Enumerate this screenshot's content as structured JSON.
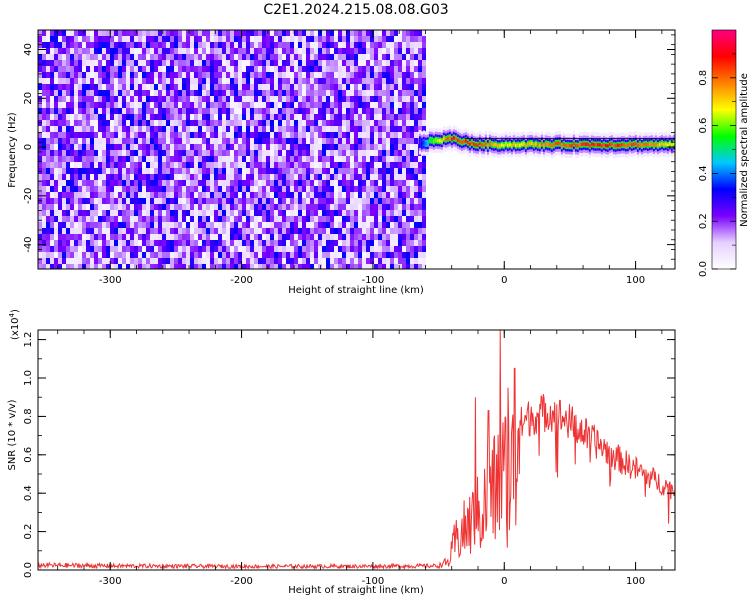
{
  "title": "C2E1.2024.215.08.08.G03",
  "chart_data": [
    {
      "type": "heatmap",
      "xlabel": "Height of straight line (km)",
      "ylabel": "Frequency (Hz)",
      "xlim": [
        -355,
        130
      ],
      "ylim": [
        -50,
        48
      ],
      "xticks": [
        -300,
        -200,
        -100,
        0,
        100
      ],
      "yticks": [
        -40,
        -20,
        0,
        20,
        40
      ],
      "noise_region": {
        "x": [
          -355,
          -62
        ],
        "y": [
          -50,
          48
        ],
        "amplitude_range": [
          0.05,
          0.35
        ]
      },
      "signal_band": {
        "x": [
          -65,
          130
        ],
        "center_frequency": [
          {
            "x": -65,
            "f": 1.5
          },
          {
            "x": -55,
            "f": 2.5
          },
          {
            "x": -40,
            "f": 3.5
          },
          {
            "x": -30,
            "f": 2.0
          },
          {
            "x": -20,
            "f": 1.0
          },
          {
            "x": -10,
            "f": 1.0
          },
          {
            "x": 0,
            "f": 1.0
          },
          {
            "x": 50,
            "f": 1.0
          },
          {
            "x": 100,
            "f": 1.0
          },
          {
            "x": 130,
            "f": 1.0
          }
        ],
        "peak_amplitude": [
          {
            "x": -65,
            "a": 0.3
          },
          {
            "x": -55,
            "a": 0.6
          },
          {
            "x": -40,
            "a": 0.9
          },
          {
            "x": -20,
            "a": 0.9
          },
          {
            "x": 0,
            "a": 0.7
          },
          {
            "x": 40,
            "a": 0.85
          },
          {
            "x": 75,
            "a": 0.9
          },
          {
            "x": 100,
            "a": 0.85
          },
          {
            "x": 130,
            "a": 0.7
          }
        ]
      },
      "colorbar": {
        "label": "Normalized spectral amplitude",
        "ticks": [
          "0.0",
          "0.2",
          "0.4",
          "0.6",
          "0.8"
        ],
        "range": [
          0,
          1
        ],
        "colors": [
          "#ffffff",
          "#e6d0ff",
          "#7a00ff",
          "#0000ff",
          "#00c8ff",
          "#00ff00",
          "#ffff00",
          "#ff8000",
          "#ff0000",
          "#ff0080"
        ]
      }
    },
    {
      "type": "line",
      "xlabel": "Height of straight line (km)",
      "ylabel": "SNR (10 * v/v)",
      "multiplier": "(x10",
      "multiplier_exp": "4",
      "multiplier_close": ")",
      "xlim": [
        -355,
        130
      ],
      "ylim": [
        0,
        12500
      ],
      "xticks": [
        -300,
        -200,
        -100,
        0,
        100
      ],
      "yticks": [
        {
          "value": 0,
          "label": "0.0"
        },
        {
          "value": 2000,
          "label": "0.2"
        },
        {
          "value": 4000,
          "label": "0.4"
        },
        {
          "value": 6000,
          "label": "0.6"
        },
        {
          "value": 8000,
          "label": "0.8"
        },
        {
          "value": 10000,
          "label": "1.0"
        },
        {
          "value": 12000,
          "label": "1.2"
        }
      ],
      "series": [
        {
          "color": "#ee3333",
          "envelope": [
            {
              "x": -355,
              "y": 300
            },
            {
              "x": -300,
              "y": 250
            },
            {
              "x": -200,
              "y": 220
            },
            {
              "x": -100,
              "y": 230
            },
            {
              "x": -50,
              "y": 250
            },
            {
              "x": -42,
              "y": 600
            },
            {
              "x": -38,
              "y": 2000
            },
            {
              "x": -30,
              "y": 3000
            },
            {
              "x": -20,
              "y": 4000
            },
            {
              "x": -10,
              "y": 5500
            },
            {
              "x": 0,
              "y": 7000
            },
            {
              "x": 20,
              "y": 8200
            },
            {
              "x": 35,
              "y": 8500
            },
            {
              "x": 50,
              "y": 7900
            },
            {
              "x": 70,
              "y": 6800
            },
            {
              "x": 90,
              "y": 5800
            },
            {
              "x": 110,
              "y": 5000
            },
            {
              "x": 130,
              "y": 4200
            }
          ],
          "peaks": [
            {
              "x": -3,
              "y": 12500
            },
            {
              "x": 8,
              "y": 10500
            },
            {
              "x": -22,
              "y": 9000
            },
            {
              "x": 3,
              "y": 9500
            },
            {
              "x": -12,
              "y": 8300
            }
          ]
        }
      ]
    }
  ]
}
